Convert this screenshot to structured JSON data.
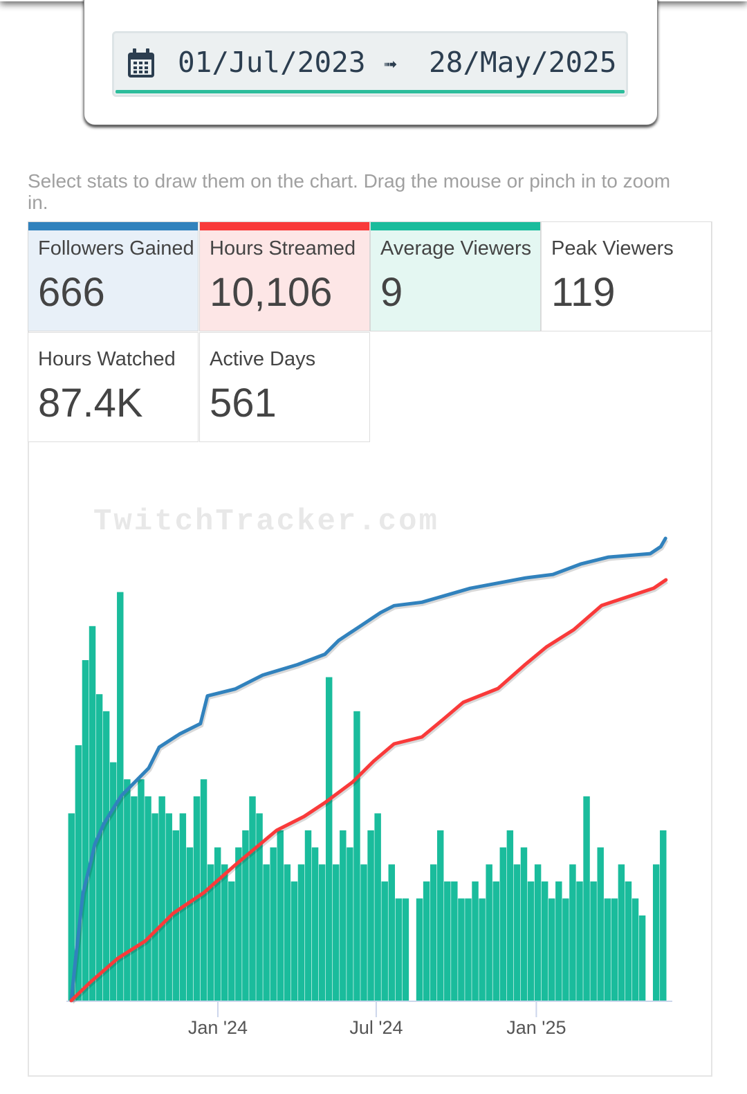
{
  "date_range": {
    "start": "01/Jul/2023",
    "arrow": "➟",
    "end": "28/May/2025",
    "icon": "calendar-icon"
  },
  "help_text": "Select stats to draw them on the chart. Drag the mouse or pinch in to zoom in.",
  "stats": [
    {
      "label": "Followers Gained",
      "value": "666",
      "color": "#3182bd",
      "bg": "#e8f0f8",
      "selected": true
    },
    {
      "label": "Hours Streamed",
      "value": "10,106",
      "color": "#f93a3a",
      "bg": "#fde6e6",
      "selected": true
    },
    {
      "label": "Average Viewers",
      "value": "9",
      "color": "#1abc9c",
      "bg": "#e4f7f2",
      "selected": true
    },
    {
      "label": "Peak Viewers",
      "value": "119",
      "color": "",
      "bg": "#ffffff",
      "selected": false
    },
    {
      "label": "Hours Watched",
      "value": "87.4K",
      "color": "",
      "bg": "#ffffff",
      "selected": false
    },
    {
      "label": "Active Days",
      "value": "561",
      "color": "",
      "bg": "#ffffff",
      "selected": false
    }
  ],
  "watermark": "TwitchTracker.com",
  "chart_data": {
    "type": "bar+line",
    "x_unit": "days since 01/Jul/2023",
    "xlim": [
      0,
      700
    ],
    "x_ticks": [
      {
        "day": 184,
        "label": "Jan '24"
      },
      {
        "day": 366,
        "label": "Jul '24"
      },
      {
        "day": 550,
        "label": "Jan '25"
      }
    ],
    "bars": {
      "name": "Average Viewers",
      "color": "#1abc9c",
      "start_day": 16,
      "step_days": 8,
      "ylim": [
        0,
        27
      ],
      "values": [
        11,
        15,
        20,
        22,
        18,
        17,
        14,
        24,
        13,
        12,
        13,
        12,
        11,
        12,
        11,
        10,
        11,
        9,
        12,
        13,
        8,
        9,
        8,
        7,
        9,
        10,
        12,
        11,
        8,
        9,
        10,
        8,
        7,
        8,
        10,
        9,
        8,
        19,
        8,
        10,
        9,
        17,
        8,
        10,
        11,
        7,
        8,
        6,
        6,
        0,
        6,
        7,
        8,
        10,
        7,
        7,
        6,
        6,
        7,
        6,
        8,
        7,
        9,
        10,
        8,
        9,
        7,
        8,
        7,
        6,
        7,
        6,
        8,
        7,
        12,
        7,
        9,
        6,
        6,
        8,
        7,
        6,
        5,
        0,
        8,
        10
      ]
    },
    "series": [
      {
        "name": "Followers Gained",
        "color": "#3182bd",
        "ylim": [
          0,
          666
        ],
        "points": [
          [
            15.5,
            0
          ],
          [
            21,
            66
          ],
          [
            29,
            155
          ],
          [
            37,
            195
          ],
          [
            42.5,
            225
          ],
          [
            53,
            255
          ],
          [
            73,
            295
          ],
          [
            104.5,
            335
          ],
          [
            116.5,
            365
          ],
          [
            140,
            384
          ],
          [
            164,
            399
          ],
          [
            172,
            439
          ],
          [
            204,
            449
          ],
          [
            235.5,
            469
          ],
          [
            275.5,
            484
          ],
          [
            307,
            499
          ],
          [
            323,
            519
          ],
          [
            347,
            539
          ],
          [
            371,
            559
          ],
          [
            386.5,
            569
          ],
          [
            418.5,
            574
          ],
          [
            474,
            594
          ],
          [
            537.5,
            609
          ],
          [
            569,
            614
          ],
          [
            601,
            629
          ],
          [
            633,
            639
          ],
          [
            681,
            644
          ],
          [
            693,
            654
          ],
          [
            698.5,
            666
          ]
        ]
      },
      {
        "name": "Hours Streamed",
        "color": "#f93a3a",
        "ylim": [
          0,
          10106
        ],
        "points": [
          [
            15.5,
            0
          ],
          [
            37,
            432
          ],
          [
            69,
            1014
          ],
          [
            100.5,
            1430
          ],
          [
            132.5,
            2094
          ],
          [
            168,
            2593
          ],
          [
            204,
            3258
          ],
          [
            251.5,
            4089
          ],
          [
            283,
            4421
          ],
          [
            307,
            4754
          ],
          [
            339,
            5252
          ],
          [
            363,
            5751
          ],
          [
            386.5,
            6167
          ],
          [
            418.5,
            6333
          ],
          [
            442.5,
            6749
          ],
          [
            466,
            7164
          ],
          [
            506,
            7496
          ],
          [
            537.5,
            8078
          ],
          [
            561.5,
            8494
          ],
          [
            593,
            8910
          ],
          [
            625,
            9491
          ],
          [
            649,
            9657
          ],
          [
            685,
            9906
          ],
          [
            699,
            10106
          ]
        ]
      }
    ]
  }
}
